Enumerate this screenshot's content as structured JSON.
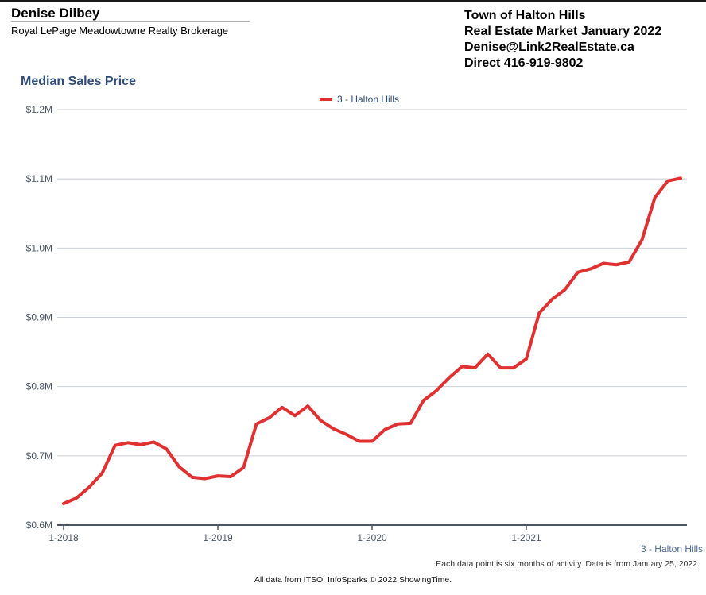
{
  "header": {
    "agent_name": "Denise Dilbey",
    "brokerage": "Royal LePage Meadowtowne Realty Brokerage",
    "market_lines": [
      "Town of Halton Hills",
      "Real Estate Market January 2022",
      "Denise@Link2RealEstate.ca",
      "Direct 416-919-9802"
    ]
  },
  "chart_data": {
    "type": "line",
    "title": "Median Sales Price",
    "xlabel": "",
    "ylabel": "",
    "ylim": [
      600000,
      1200000
    ],
    "y_ticks": [
      {
        "value": 600000,
        "label": "$0.6M"
      },
      {
        "value": 700000,
        "label": "$0.7M"
      },
      {
        "value": 800000,
        "label": "$0.8M"
      },
      {
        "value": 900000,
        "label": "$0.9M"
      },
      {
        "value": 1000000,
        "label": "$1.0M"
      },
      {
        "value": 1100000,
        "label": "$1.1M"
      },
      {
        "value": 1200000,
        "label": "$1.2M"
      }
    ],
    "x_ticks": [
      "1-2018",
      "1-2019",
      "1-2020",
      "1-2021"
    ],
    "grid": true,
    "legend_position": "top-center",
    "series": [
      {
        "name": "3 - Halton Hills",
        "color": "#e03030",
        "x": [
          "1-2018",
          "2-2018",
          "3-2018",
          "4-2018",
          "5-2018",
          "6-2018",
          "7-2018",
          "8-2018",
          "9-2018",
          "10-2018",
          "11-2018",
          "12-2018",
          "1-2019",
          "2-2019",
          "3-2019",
          "4-2019",
          "5-2019",
          "6-2019",
          "7-2019",
          "8-2019",
          "9-2019",
          "10-2019",
          "11-2019",
          "12-2019",
          "1-2020",
          "2-2020",
          "3-2020",
          "4-2020",
          "5-2020",
          "6-2020",
          "7-2020",
          "8-2020",
          "9-2020",
          "10-2020",
          "11-2020",
          "12-2020",
          "1-2021",
          "2-2021",
          "3-2021",
          "4-2021",
          "5-2021",
          "6-2021",
          "7-2021",
          "8-2021",
          "9-2021",
          "10-2021",
          "11-2021",
          "12-2021",
          "1-2022"
        ],
        "values": [
          631000,
          639000,
          655000,
          675000,
          715000,
          719000,
          716000,
          720000,
          710000,
          684000,
          669000,
          667000,
          671000,
          670000,
          683000,
          746000,
          755000,
          770000,
          758000,
          772000,
          751000,
          739000,
          731000,
          721000,
          721000,
          738000,
          746000,
          747000,
          780000,
          794000,
          813000,
          829000,
          827000,
          847000,
          827000,
          827000,
          840000,
          906000,
          926000,
          940000,
          965000,
          970000,
          978000,
          976000,
          980000,
          1012000,
          1073000,
          1097000,
          1101000
        ]
      }
    ]
  },
  "footer": {
    "series_label": "3 - Halton Hills",
    "note": "Each data point is six months of activity. Data is from January 25, 2022.",
    "source": "All data from ITSO. InfoSparks © 2022 ShowingTime."
  }
}
